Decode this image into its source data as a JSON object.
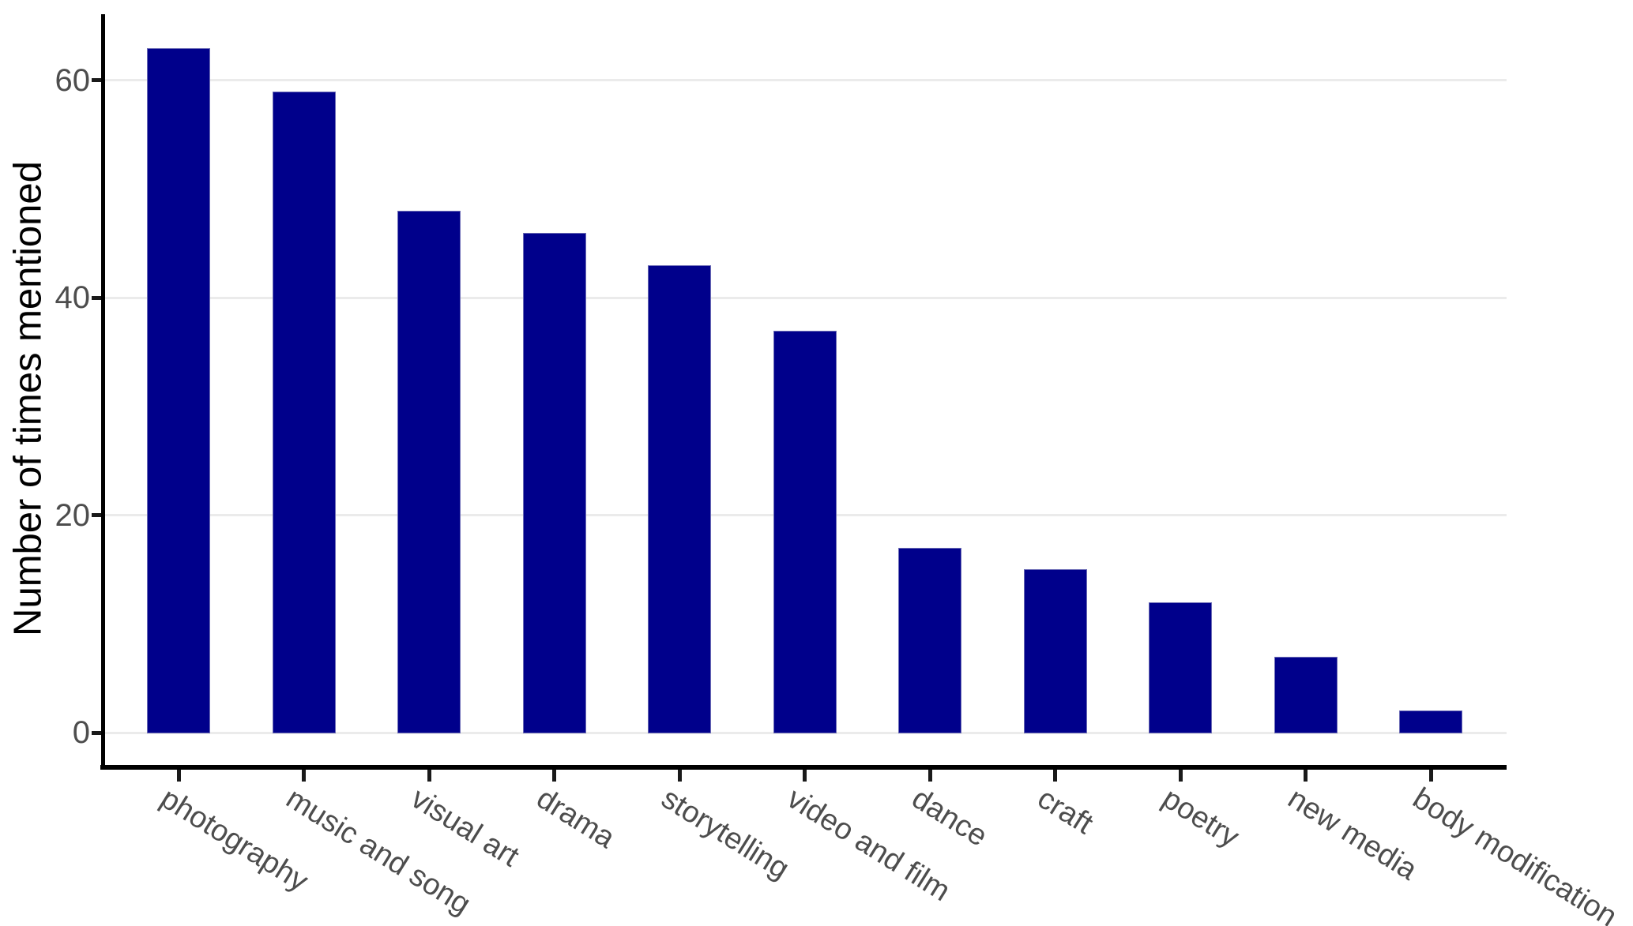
{
  "chart_data": {
    "type": "bar",
    "categories": [
      "photography",
      "music and song",
      "visual art",
      "drama",
      "storytelling",
      "video and film",
      "dance",
      "craft",
      "poetry",
      "new media",
      "body modification"
    ],
    "values": [
      63,
      59,
      48,
      46,
      43,
      37,
      17,
      15,
      12,
      7,
      2
    ],
    "title": "",
    "xlabel": "",
    "ylabel": "Number of times mentioned",
    "ylim": [
      0,
      66
    ],
    "yticks": [
      0,
      20,
      40,
      60
    ],
    "legend": "none",
    "grid": "horizontal-only",
    "x_tick_angle_deg": 32,
    "colors": {
      "bar_fill": "#00008B",
      "gridline": "#EBEBEB",
      "axis_line": "#000000",
      "tick_mark": "#1a1a1a",
      "tick_label": "#4D4D4D",
      "axis_title": "#000000",
      "background": "#FFFFFF"
    }
  }
}
